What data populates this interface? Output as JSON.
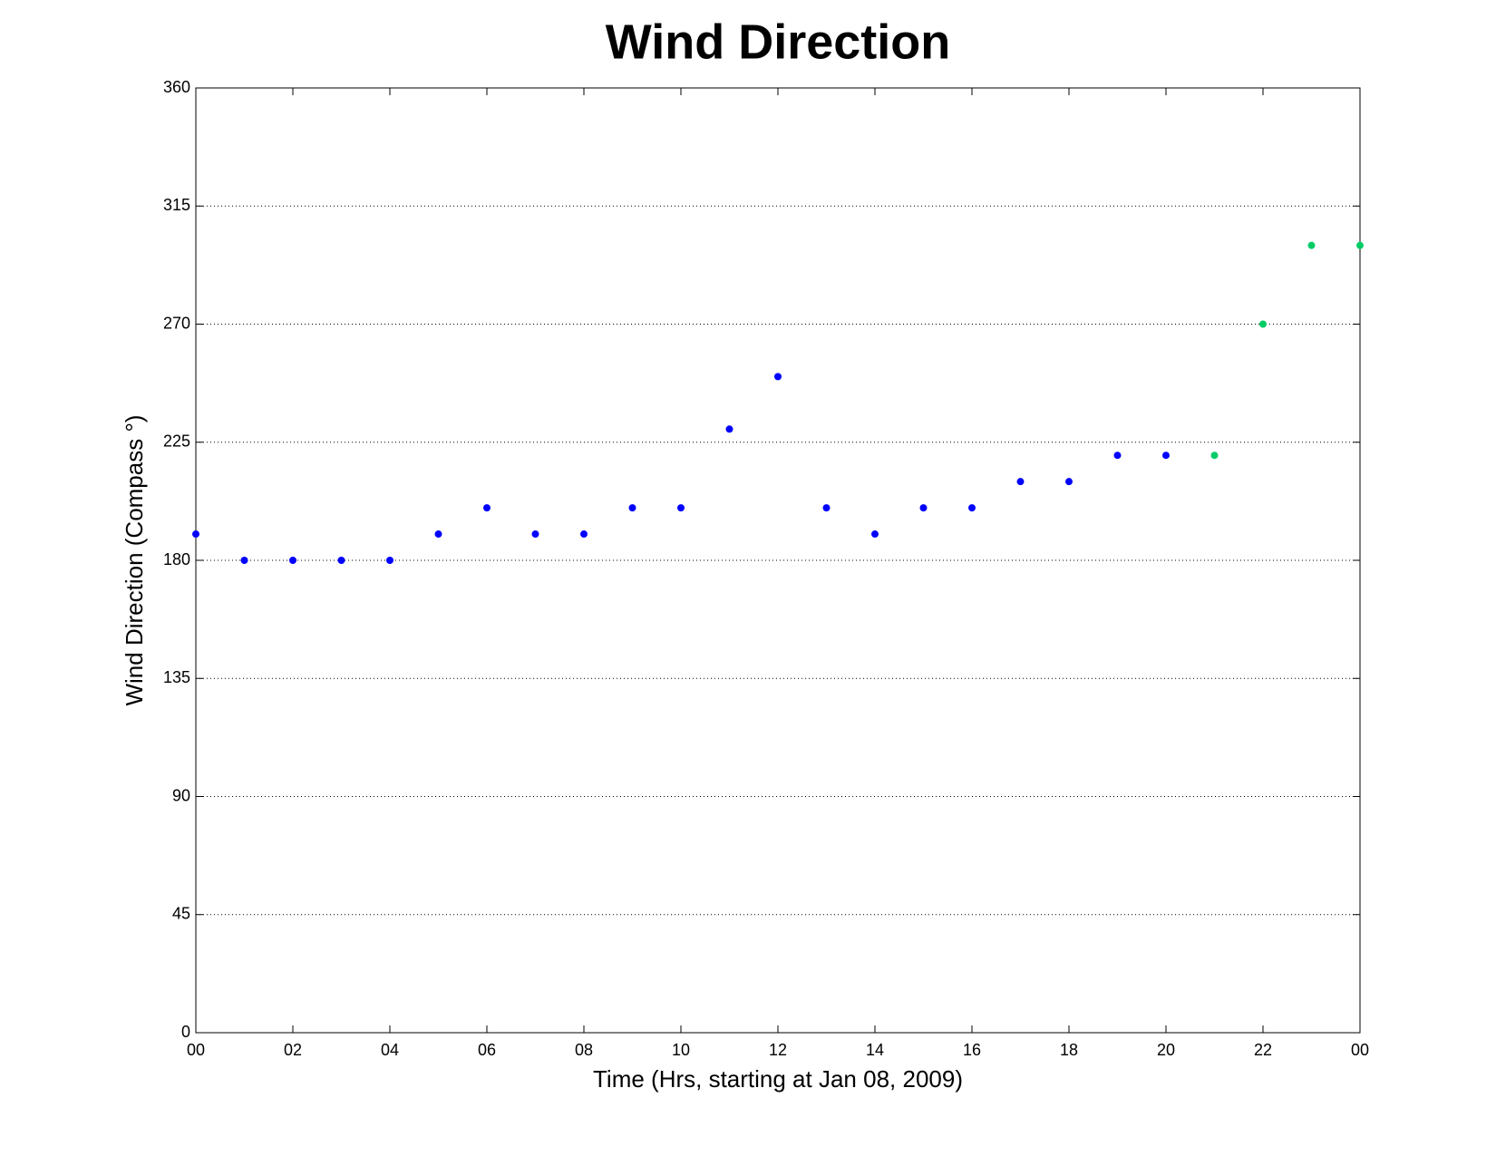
{
  "chart_data": {
    "type": "scatter",
    "title": "Wind Direction",
    "x_label": "Time (Hrs, starting at Jan 08, 2009)",
    "y_label": "Wind Direction (Compass  °)",
    "series": [
      {
        "color": "#0000ff",
        "x": [
          0,
          1,
          2,
          3,
          4,
          5,
          6,
          7,
          8,
          9,
          10,
          11,
          12,
          13,
          14,
          15,
          16,
          17,
          18,
          19,
          20
        ],
        "values": [
          190,
          180,
          180,
          180,
          180,
          190,
          200,
          190,
          190,
          200,
          200,
          230,
          250,
          200,
          190,
          200,
          200,
          210,
          210,
          220,
          220
        ]
      },
      {
        "color": "#00cc66",
        "x": [
          21,
          22,
          23,
          24
        ],
        "values": [
          220,
          270,
          300,
          300
        ]
      }
    ],
    "xlim": [
      0,
      24
    ],
    "xticks": [
      {
        "value": 0,
        "label": "00"
      },
      {
        "value": 2,
        "label": "02"
      },
      {
        "value": 4,
        "label": "04"
      },
      {
        "value": 6,
        "label": "06"
      },
      {
        "value": 8,
        "label": "08"
      },
      10,
      12,
      14,
      16,
      18,
      20,
      22,
      {
        "value": 24,
        "label": "00"
      }
    ],
    "ylim": [
      0,
      360
    ],
    "yticks": [
      0,
      45,
      90,
      135,
      180,
      225,
      270,
      315,
      360
    ],
    "grid": true
  }
}
